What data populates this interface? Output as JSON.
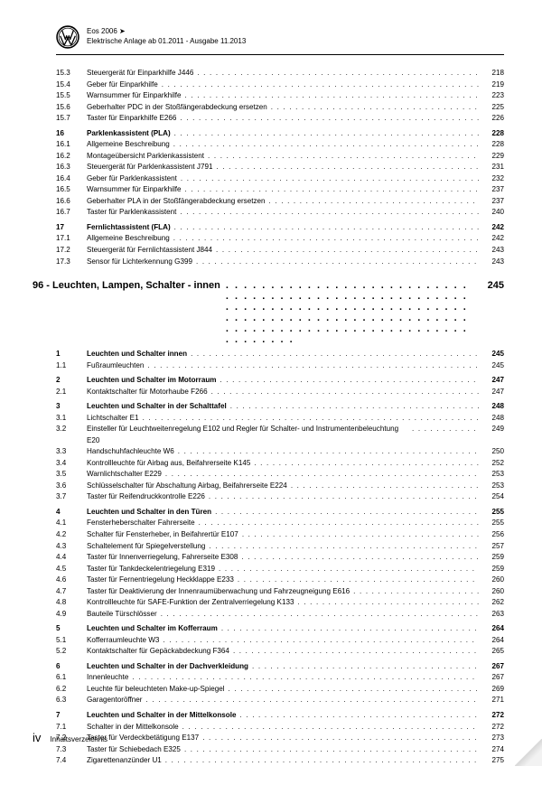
{
  "header": {
    "model": "Eos 2006 ➤",
    "subtitle": "Elektrische Anlage ab 01.2011 - Ausgabe 11.2013"
  },
  "chapter": {
    "num": "96",
    "title": "Leuchten, Lampen, Schalter - innen",
    "page": "245"
  },
  "rows": [
    {
      "n": "15.3",
      "t": "Steuergerät für Einparkhilfe J446",
      "p": "218"
    },
    {
      "n": "15.4",
      "t": "Geber für Einparkhilfe",
      "p": "219"
    },
    {
      "n": "15.5",
      "t": "Warnsummer für Einparkhilfe",
      "p": "223"
    },
    {
      "n": "15.6",
      "t": "Geberhalter PDC in der Stoßfängerabdeckung ersetzen",
      "p": "225"
    },
    {
      "n": "15.7",
      "t": "Taster für Einparkhilfe E266",
      "p": "226"
    },
    {
      "n": "16",
      "t": "Parklenkassistent (PLA)",
      "p": "228",
      "b": true,
      "gapBefore": true
    },
    {
      "n": "16.1",
      "t": "Allgemeine Beschreibung",
      "p": "228"
    },
    {
      "n": "16.2",
      "t": "Montageübersicht Parklenkassistent",
      "p": "229"
    },
    {
      "n": "16.3",
      "t": "Steuergerät für Parklenkassistent J791",
      "p": "231"
    },
    {
      "n": "16.4",
      "t": "Geber für Parklenkassistent",
      "p": "232"
    },
    {
      "n": "16.5",
      "t": "Warnsummer für Einparkhilfe",
      "p": "237"
    },
    {
      "n": "16.6",
      "t": "Geberhalter PLA in der Stoßfängerabdeckung ersetzen",
      "p": "237"
    },
    {
      "n": "16.7",
      "t": "Taster für Parklenkassistent",
      "p": "240"
    },
    {
      "n": "17",
      "t": "Fernlichtassistent (FLA)",
      "p": "242",
      "b": true,
      "gapBefore": true
    },
    {
      "n": "17.1",
      "t": "Allgemeine Beschreibung",
      "p": "242"
    },
    {
      "n": "17.2",
      "t": "Steuergerät für Fernlichtassistent J844",
      "p": "243"
    },
    {
      "n": "17.3",
      "t": "Sensor für Lichterkennung G399",
      "p": "243"
    }
  ],
  "rows2": [
    {
      "n": "1",
      "t": "Leuchten und Schalter innen",
      "p": "245",
      "b": true
    },
    {
      "n": "1.1",
      "t": "Fußraumleuchten",
      "p": "245"
    },
    {
      "n": "2",
      "t": "Leuchten und Schalter im Motorraum",
      "p": "247",
      "b": true,
      "gapBefore": true
    },
    {
      "n": "2.1",
      "t": "Kontaktschalter für Motorhaube F266",
      "p": "247"
    },
    {
      "n": "3",
      "t": "Leuchten und Schalter in der Schalttafel",
      "p": "248",
      "b": true,
      "gapBefore": true
    },
    {
      "n": "3.1",
      "t": "Lichtschalter E1",
      "p": "248"
    },
    {
      "n": "3.2",
      "t": "Einsteller für Leuchtweitenregelung E102 und Regler für Schalter- und Instrumentenbeleuchtung E20",
      "p": "249",
      "multi": true
    },
    {
      "n": "3.3",
      "t": "Handschuhfachleuchte W6",
      "p": "250"
    },
    {
      "n": "3.4",
      "t": "Kontrollleuchte für Airbag aus, Beifahrerseite K145",
      "p": "252"
    },
    {
      "n": "3.5",
      "t": "Warnlichtschalter E229",
      "p": "253"
    },
    {
      "n": "3.6",
      "t": "Schlüsselschalter für Abschaltung Airbag, Beifahrerseite E224",
      "p": "253"
    },
    {
      "n": "3.7",
      "t": "Taster für Reifendruckkontrolle E226",
      "p": "254"
    },
    {
      "n": "4",
      "t": "Leuchten und Schalter in den Türen",
      "p": "255",
      "b": true,
      "gapBefore": true
    },
    {
      "n": "4.1",
      "t": "Fensterheberschalter Fahrerseite",
      "p": "255"
    },
    {
      "n": "4.2",
      "t": "Schalter für Fensterheber, in Beifahrertür E107",
      "p": "256"
    },
    {
      "n": "4.3",
      "t": "Schaltelement für Spiegelverstellung",
      "p": "257"
    },
    {
      "n": "4.4",
      "t": "Taster für Innenverriegelung, Fahrerseite E308",
      "p": "259"
    },
    {
      "n": "4.5",
      "t": "Taster für Tankdeckelentriegelung E319",
      "p": "259"
    },
    {
      "n": "4.6",
      "t": "Taster für Fernentriegelung Heckklappe E233",
      "p": "260"
    },
    {
      "n": "4.7",
      "t": "Taster für Deaktivierung der Innenraumüberwachung und Fahrzeugneigung E616",
      "p": "260"
    },
    {
      "n": "4.8",
      "t": "Kontrollleuchte für SAFE-Funktion der Zentralverriegelung K133",
      "p": "262"
    },
    {
      "n": "4.9",
      "t": "Bauteile Türschlösser",
      "p": "263"
    },
    {
      "n": "5",
      "t": "Leuchten und Schalter im Kofferraum",
      "p": "264",
      "b": true,
      "gapBefore": true
    },
    {
      "n": "5.1",
      "t": "Kofferraumleuchte W3",
      "p": "264"
    },
    {
      "n": "5.2",
      "t": "Kontaktschalter für Gepäckabdeckung F364",
      "p": "265"
    },
    {
      "n": "6",
      "t": "Leuchten und Schalter in der Dachverkleidung",
      "p": "267",
      "b": true,
      "gapBefore": true
    },
    {
      "n": "6.1",
      "t": "Innenleuchte",
      "p": "267"
    },
    {
      "n": "6.2",
      "t": "Leuchte für beleuchteten Make-up-Spiegel",
      "p": "269"
    },
    {
      "n": "6.3",
      "t": "Garagentoröffner",
      "p": "271"
    },
    {
      "n": "7",
      "t": "Leuchten und Schalter in der Mittelkonsole",
      "p": "272",
      "b": true,
      "gapBefore": true
    },
    {
      "n": "7.1",
      "t": "Schalter in der Mittelkonsole",
      "p": "272"
    },
    {
      "n": "7.2",
      "t": "Taster für Verdeckbetätigung E137",
      "p": "273"
    },
    {
      "n": "7.3",
      "t": "Taster für Schiebedach E325",
      "p": "274"
    },
    {
      "n": "7.4",
      "t": "Zigarettenanzünder U1",
      "p": "275"
    }
  ],
  "footer": {
    "page": "iv",
    "label": "Inhaltsverzeichnis"
  }
}
